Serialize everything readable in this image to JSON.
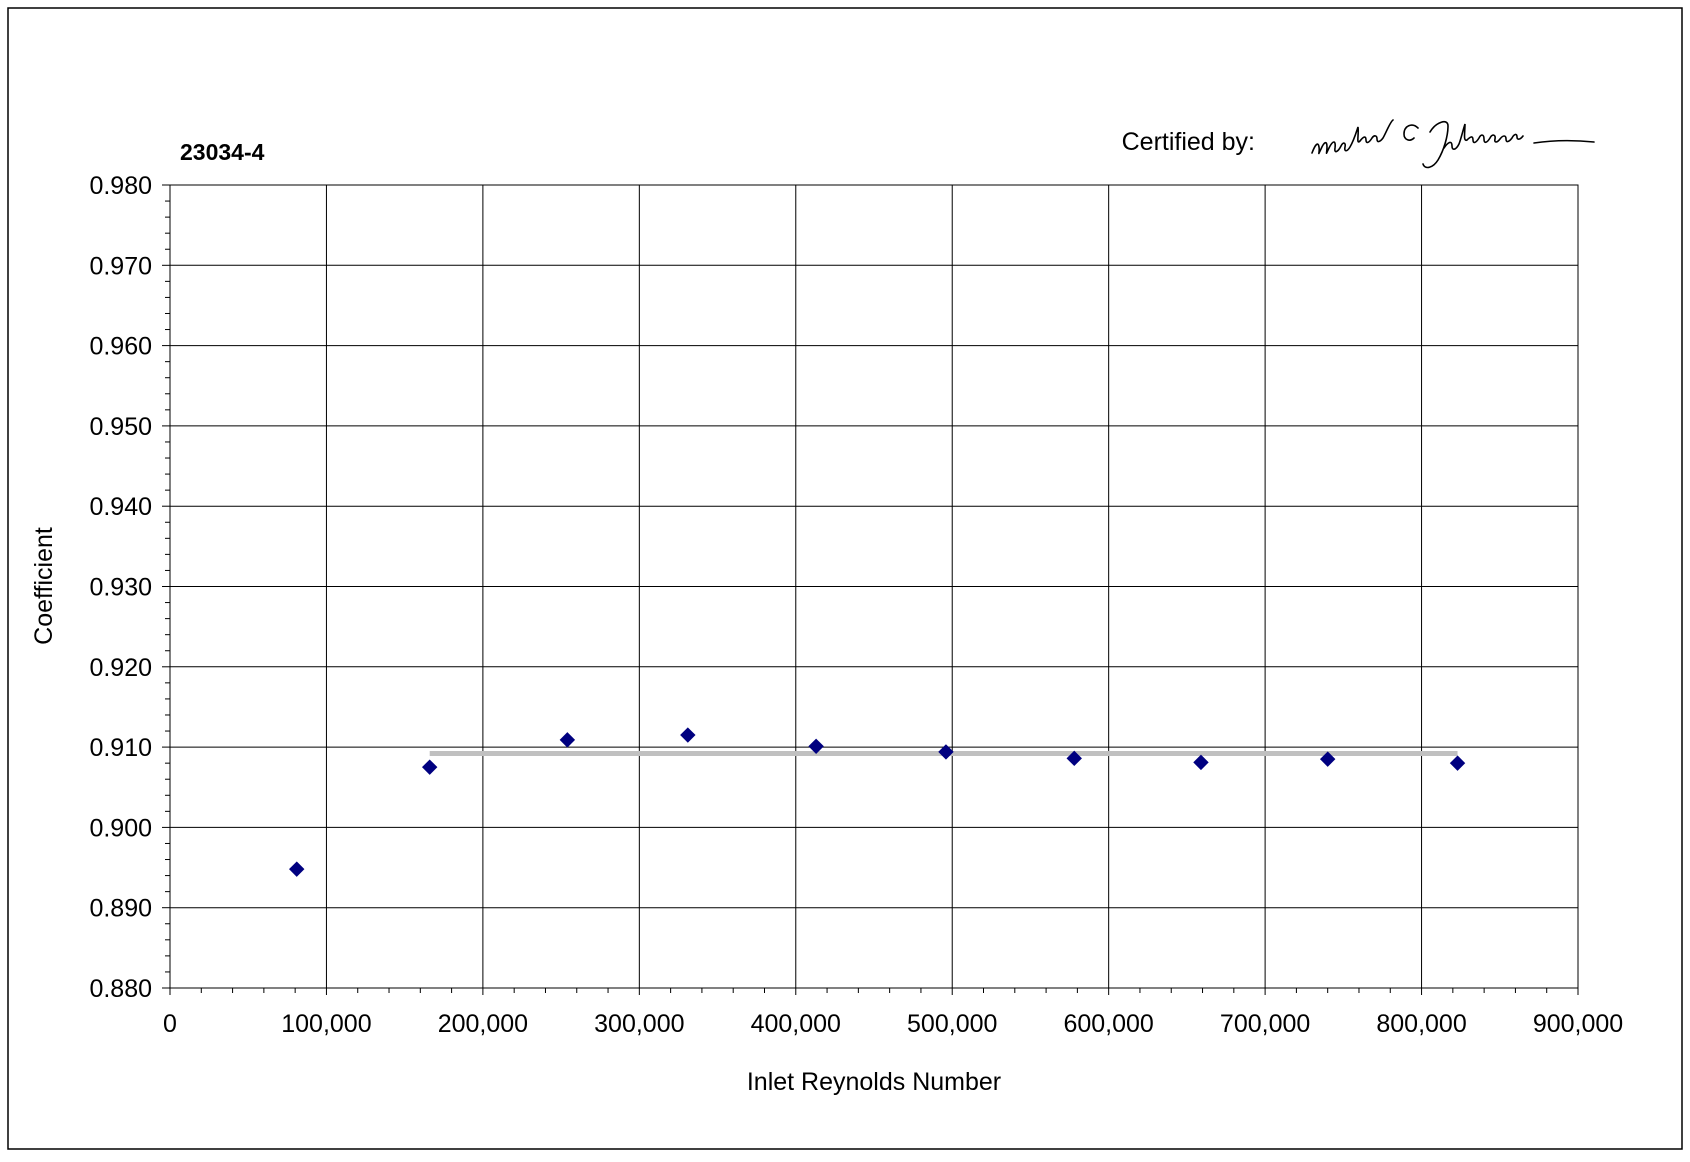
{
  "chart_data": {
    "type": "scatter",
    "title": "23034-4",
    "xlabel": "Inlet Reynolds Number",
    "ylabel": "Coefficient",
    "certified_label": "Certified by:",
    "signature": "Michael Johnson",
    "xlim": [
      0,
      900000
    ],
    "ylim": [
      0.88,
      0.98
    ],
    "grid": true,
    "x_ticks": [
      "0",
      "100,000",
      "200,000",
      "300,000",
      "400,000",
      "500,000",
      "600,000",
      "700,000",
      "800,000",
      "900,000"
    ],
    "y_ticks": [
      "0.880",
      "0.890",
      "0.900",
      "0.910",
      "0.920",
      "0.930",
      "0.940",
      "0.950",
      "0.960",
      "0.970",
      "0.980"
    ],
    "series": [
      {
        "marker": "diamond",
        "color": "#000080",
        "x": [
          81000,
          166000,
          254000,
          331000,
          413000,
          496000,
          578000,
          659000,
          740000,
          823000
        ],
        "y": [
          0.8948,
          0.9075,
          0.9109,
          0.9115,
          0.9101,
          0.9094,
          0.9086,
          0.9081,
          0.9085,
          0.908
        ]
      }
    ],
    "mean_line": {
      "x": [
        166000,
        823000
      ],
      "y": 0.9092,
      "color": "#C0C0C0"
    }
  }
}
